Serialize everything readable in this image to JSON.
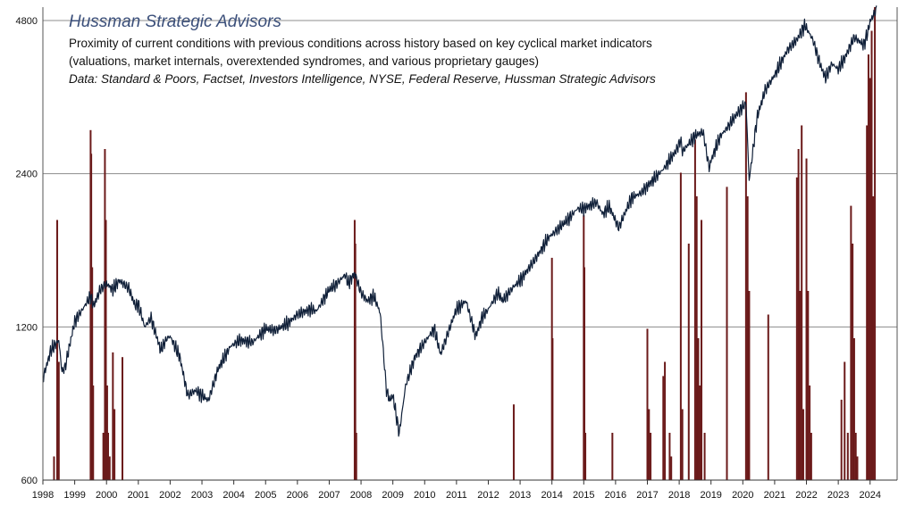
{
  "chart_data": {
    "type": "line",
    "title": "Hussman Strategic Advisors",
    "subtitle_lines": [
      "Proximity of current conditions with previous conditions across history based on key cyclical market indicators",
      "(valuations, market internals, overextended syndromes, and various proprietary gauges)"
    ],
    "source": "Data: Standard & Poors, Factset,  Investors Intelligence,  NYSE, Federal Reserve, Hussman Strategic Advisors",
    "y_scale": "log",
    "ylim": [
      600,
      5100
    ],
    "y_ticks": [
      600,
      1200,
      2400,
      4800
    ],
    "y_tick_labels": [
      "600",
      "1200",
      "2400",
      "4800"
    ],
    "xlim": [
      1998.0,
      2024.85
    ],
    "x_ticks": [
      1998,
      1999,
      2000,
      2001,
      2002,
      2003,
      2004,
      2005,
      2006,
      2007,
      2008,
      2009,
      2010,
      2011,
      2012,
      2013,
      2014,
      2015,
      2016,
      2017,
      2018,
      2019,
      2020,
      2021,
      2022,
      2023,
      2024
    ],
    "x_tick_labels": [
      "1998",
      "1999",
      "2000",
      "2001",
      "2002",
      "2003",
      "2004",
      "2005",
      "2006",
      "2007",
      "2008",
      "2009",
      "2010",
      "2011",
      "2012",
      "2013",
      "2014",
      "2015",
      "2016",
      "2017",
      "2018",
      "2019",
      "2020",
      "2021",
      "2022",
      "2023",
      "2024"
    ],
    "gridlines": "horizontal",
    "colors": {
      "line": "#0f1f38",
      "bars": "#6b1a1a",
      "grid": "#8c8c8c",
      "title": "#3b4f7a"
    },
    "series": [
      {
        "kind": "line",
        "x": [
          1998.0,
          1998.25,
          1998.5,
          1998.6,
          1998.7,
          1998.9,
          1999.0,
          1999.25,
          1999.5,
          1999.6,
          1999.8,
          2000.0,
          2000.2,
          2000.4,
          2000.7,
          2000.9,
          2001.0,
          2001.2,
          2001.4,
          2001.7,
          2001.9,
          2002.0,
          2002.3,
          2002.55,
          2002.8,
          2003.0,
          2003.2,
          2003.5,
          2003.9,
          2004.2,
          2004.6,
          2005.0,
          2005.3,
          2005.7,
          2006.0,
          2006.4,
          2006.6,
          2007.0,
          2007.2,
          2007.5,
          2007.6,
          2007.8,
          2008.0,
          2008.2,
          2008.4,
          2008.6,
          2008.8,
          2008.9,
          2009.0,
          2009.2,
          2009.4,
          2009.7,
          2010.0,
          2010.3,
          2010.5,
          2010.8,
          2011.0,
          2011.3,
          2011.6,
          2011.8,
          2012.0,
          2012.3,
          2012.45,
          2012.8,
          2013.0,
          2013.5,
          2013.9,
          2014.2,
          2014.5,
          2014.8,
          2015.0,
          2015.4,
          2015.6,
          2015.8,
          2016.0,
          2016.1,
          2016.5,
          2016.8,
          2017.0,
          2017.5,
          2017.9,
          2018.05,
          2018.1,
          2018.5,
          2018.75,
          2018.95,
          2019.0,
          2019.3,
          2019.5,
          2019.9,
          2020.1,
          2020.2,
          2020.45,
          2020.7,
          2021.0,
          2021.4,
          2021.7,
          2021.95,
          2022.2,
          2022.45,
          2022.6,
          2022.8,
          2023.0,
          2023.2,
          2023.5,
          2023.8,
          2023.95,
          2024.0,
          2024.2
        ],
        "y": [
          950,
          1080,
          1130,
          980,
          1000,
          1150,
          1230,
          1300,
          1380,
          1320,
          1420,
          1460,
          1420,
          1480,
          1430,
          1320,
          1330,
          1200,
          1250,
          1080,
          1140,
          1150,
          1050,
          880,
          900,
          880,
          860,
          990,
          1100,
          1130,
          1120,
          1190,
          1180,
          1220,
          1270,
          1300,
          1290,
          1420,
          1450,
          1520,
          1460,
          1530,
          1400,
          1350,
          1380,
          1280,
          900,
          860,
          880,
          740,
          920,
          1050,
          1120,
          1190,
          1060,
          1200,
          1300,
          1350,
          1150,
          1250,
          1300,
          1400,
          1350,
          1440,
          1480,
          1640,
          1800,
          1870,
          1950,
          2050,
          2050,
          2110,
          2000,
          2070,
          1940,
          1880,
          2150,
          2200,
          2270,
          2450,
          2660,
          2800,
          2650,
          2850,
          2900,
          2450,
          2550,
          2850,
          2950,
          3200,
          3300,
          2330,
          3100,
          3500,
          3750,
          4200,
          4400,
          4700,
          4400,
          3900,
          3700,
          3950,
          3850,
          4050,
          4450,
          4300,
          4600,
          4780,
          5050
        ]
      },
      {
        "kind": "bar",
        "x": [
          1998.35,
          1998.45,
          1998.5,
          1999.5,
          1999.52,
          1999.55,
          1999.58,
          1999.9,
          1999.95,
          1999.98,
          2000.02,
          2000.05,
          2000.1,
          2000.2,
          2000.25,
          2000.5,
          2007.8,
          2007.82,
          2007.85,
          2012.8,
          2014.0,
          2014.02,
          2015.0,
          2015.02,
          2015.05,
          2015.9,
          2017.0,
          2017.05,
          2017.1,
          2017.5,
          2017.55,
          2017.7,
          2017.75,
          2018.05,
          2018.1,
          2018.3,
          2018.5,
          2018.55,
          2018.6,
          2018.65,
          2018.7,
          2018.8,
          2019.5,
          2020.1,
          2020.15,
          2020.2,
          2020.8,
          2021.7,
          2021.75,
          2021.8,
          2021.85,
          2021.9,
          2022.0,
          2022.05,
          2022.1,
          2022.15,
          2023.1,
          2023.2,
          2023.3,
          2023.4,
          2023.45,
          2023.5,
          2023.55,
          2023.6,
          2023.9,
          2023.95,
          2024.0,
          2024.05,
          2024.1,
          2024.15
        ],
        "y": [
          0.05,
          0.55,
          0.25,
          0.74,
          0.69,
          0.45,
          0.2,
          0.1,
          0.7,
          0.55,
          0.2,
          0.1,
          0.05,
          0.27,
          0.15,
          0.26,
          0.55,
          0.5,
          0.1,
          0.16,
          0.47,
          0.3,
          0.56,
          0.45,
          0.1,
          0.1,
          0.32,
          0.15,
          0.1,
          0.22,
          0.25,
          0.1,
          0.05,
          0.65,
          0.15,
          0.5,
          0.72,
          0.6,
          0.3,
          0.2,
          0.55,
          0.1,
          0.62,
          0.82,
          0.6,
          0.4,
          0.35,
          0.64,
          0.7,
          0.4,
          0.75,
          0.15,
          0.68,
          0.4,
          0.2,
          0.1,
          0.17,
          0.25,
          0.1,
          0.58,
          0.5,
          0.3,
          0.1,
          0.05,
          0.75,
          0.9,
          0.85,
          0.95,
          0.6,
          1.0
        ]
      }
    ]
  }
}
